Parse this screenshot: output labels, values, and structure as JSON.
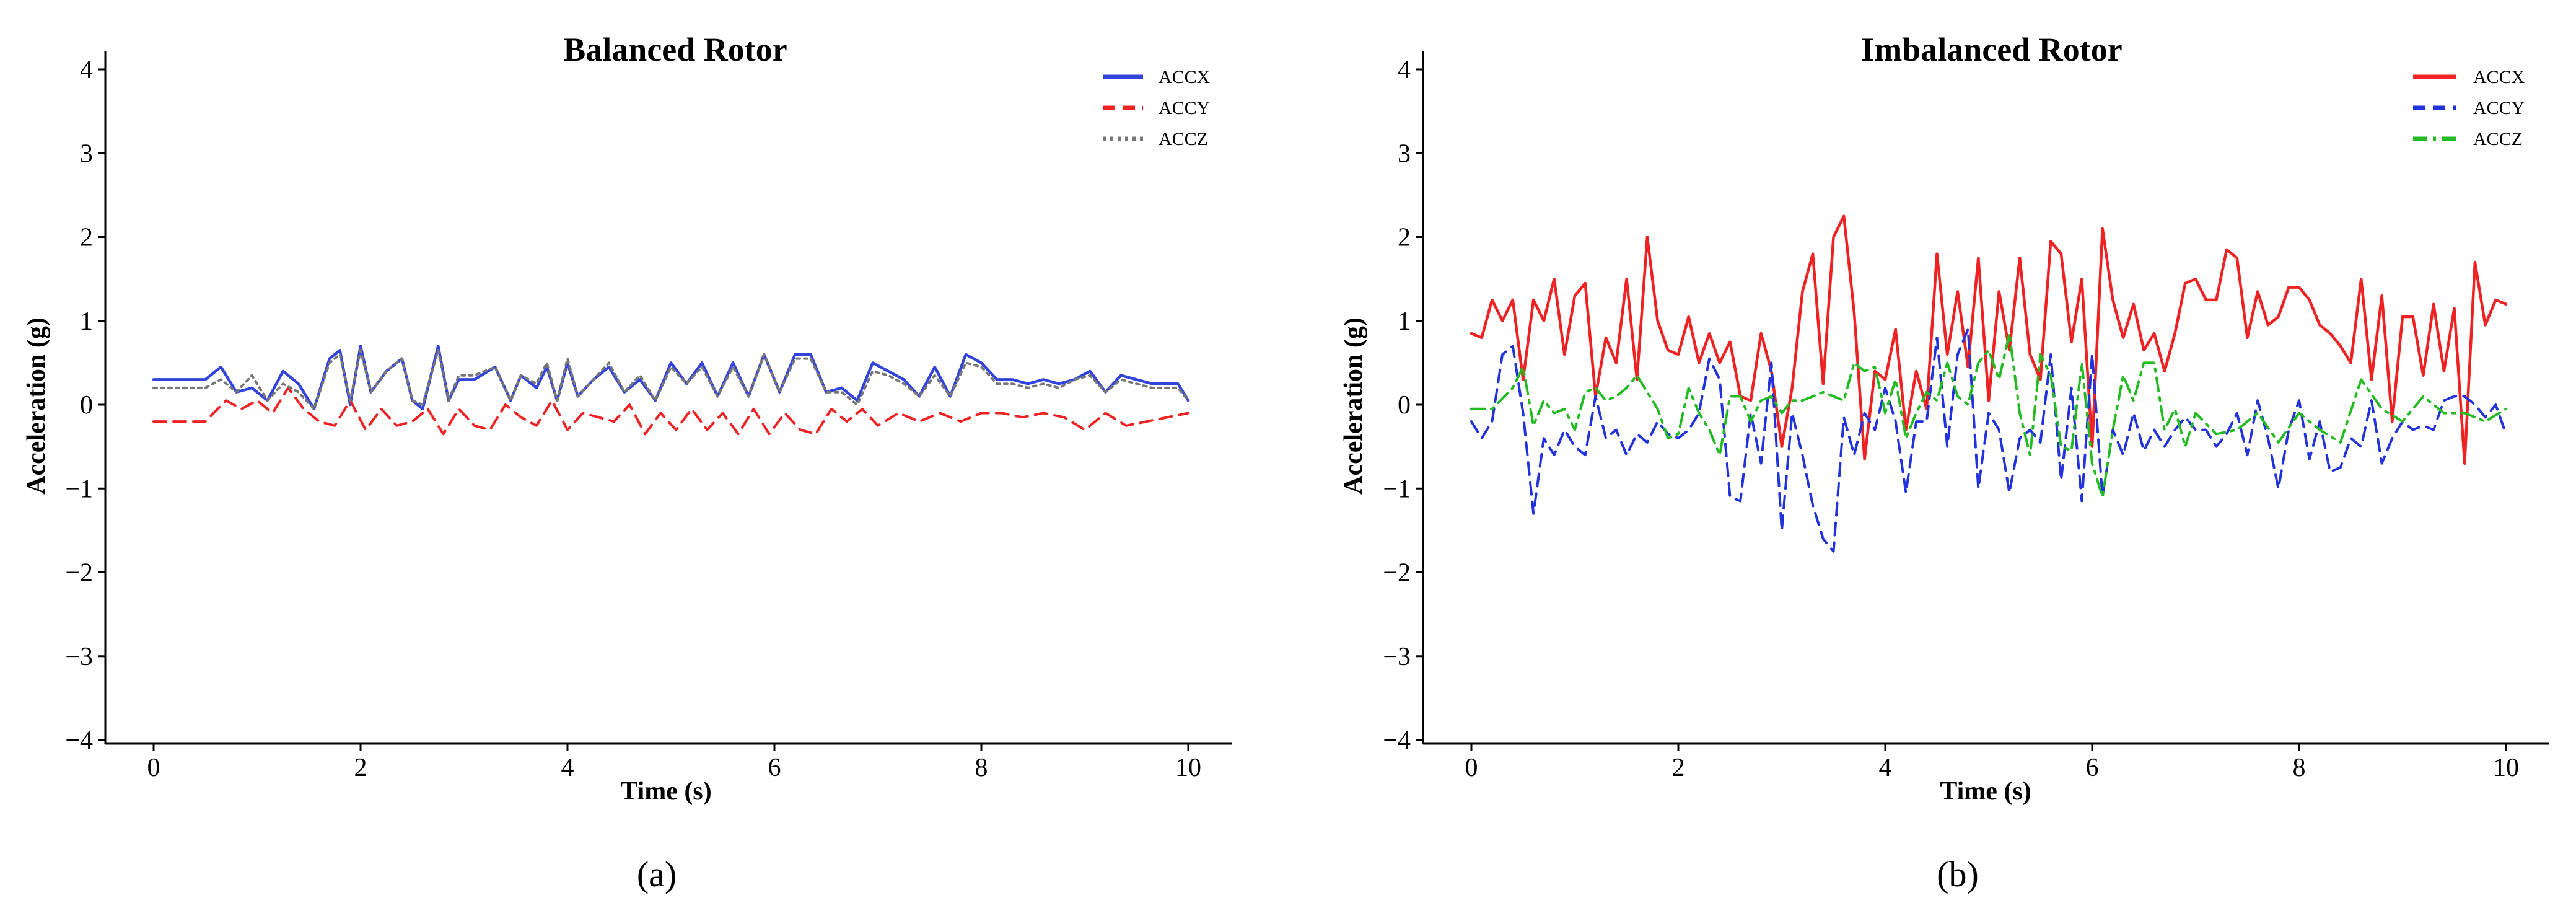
{
  "colors": {
    "blue": "#3344dd",
    "red": "#ee2222",
    "gray": "#777777",
    "green": "#22bb22",
    "axis": "#000000"
  },
  "chart_data": [
    {
      "type": "line",
      "caption": "(a)",
      "title": "Balanced Rotor",
      "xlabel": "Time (s)",
      "ylabel": "Acceleration (g)",
      "xlim": [
        0,
        10
      ],
      "ylim": [
        -4,
        4
      ],
      "xticks": [
        "0",
        "2",
        "4",
        "6",
        "8",
        "10"
      ],
      "yticks": [
        "4",
        "3",
        "2",
        "1",
        "0",
        "−1",
        "−2",
        "−3",
        "−4"
      ],
      "legend_position": "top-right",
      "grid": false,
      "series": [
        {
          "name": "ACCX",
          "color": "#3344dd",
          "style": "solid",
          "x": [
            0,
            0.5,
            0.65,
            0.8,
            0.95,
            1.1,
            1.25,
            1.4,
            1.55,
            1.7,
            1.8,
            1.9,
            2.0,
            2.1,
            2.25,
            2.4,
            2.5,
            2.6,
            2.75,
            2.85,
            2.95,
            3.1,
            3.3,
            3.45,
            3.55,
            3.7,
            3.8,
            3.9,
            4.0,
            4.1,
            4.25,
            4.4,
            4.55,
            4.7,
            4.85,
            5.0,
            5.15,
            5.3,
            5.45,
            5.6,
            5.75,
            5.9,
            6.05,
            6.2,
            6.35,
            6.5,
            6.65,
            6.8,
            6.95,
            7.1,
            7.25,
            7.4,
            7.55,
            7.7,
            7.85,
            8.0,
            8.15,
            8.3,
            8.45,
            8.6,
            8.75,
            8.9,
            9.05,
            9.2,
            9.35,
            9.5,
            9.65,
            9.8,
            9.9,
            10.0
          ],
          "y": [
            0.3,
            0.3,
            0.45,
            0.15,
            0.2,
            0.05,
            0.4,
            0.25,
            -0.05,
            0.55,
            0.65,
            0.0,
            0.7,
            0.15,
            0.4,
            0.55,
            0.05,
            -0.05,
            0.7,
            0.05,
            0.3,
            0.3,
            0.45,
            0.05,
            0.35,
            0.2,
            0.45,
            0.05,
            0.5,
            0.1,
            0.3,
            0.45,
            0.15,
            0.3,
            0.05,
            0.5,
            0.25,
            0.5,
            0.1,
            0.5,
            0.1,
            0.6,
            0.15,
            0.6,
            0.6,
            0.15,
            0.2,
            0.05,
            0.5,
            0.4,
            0.3,
            0.1,
            0.45,
            0.1,
            0.6,
            0.5,
            0.3,
            0.3,
            0.25,
            0.3,
            0.25,
            0.3,
            0.4,
            0.15,
            0.35,
            0.3,
            0.25,
            0.25,
            0.25,
            0.05
          ]
        },
        {
          "name": "ACCY",
          "color": "#ee2222",
          "style": "dashed",
          "x": [
            0,
            0.5,
            0.7,
            0.85,
            1.0,
            1.15,
            1.3,
            1.45,
            1.6,
            1.75,
            1.9,
            2.05,
            2.2,
            2.35,
            2.5,
            2.65,
            2.8,
            2.95,
            3.1,
            3.25,
            3.4,
            3.55,
            3.7,
            3.85,
            4.0,
            4.15,
            4.3,
            4.45,
            4.6,
            4.75,
            4.9,
            5.05,
            5.2,
            5.35,
            5.5,
            5.65,
            5.8,
            5.95,
            6.1,
            6.25,
            6.4,
            6.55,
            6.7,
            6.85,
            7.0,
            7.2,
            7.4,
            7.6,
            7.8,
            8.0,
            8.2,
            8.4,
            8.6,
            8.8,
            9.0,
            9.2,
            9.4,
            9.6,
            9.8,
            10.0
          ],
          "y": [
            -0.2,
            -0.2,
            0.05,
            -0.05,
            0.05,
            -0.1,
            0.2,
            -0.05,
            -0.2,
            -0.25,
            0.05,
            -0.3,
            -0.05,
            -0.25,
            -0.2,
            -0.05,
            -0.35,
            -0.05,
            -0.25,
            -0.3,
            0.0,
            -0.15,
            -0.25,
            0.05,
            -0.3,
            -0.1,
            -0.15,
            -0.2,
            0.0,
            -0.35,
            -0.1,
            -0.3,
            -0.05,
            -0.3,
            -0.1,
            -0.35,
            -0.05,
            -0.35,
            -0.1,
            -0.3,
            -0.35,
            -0.05,
            -0.2,
            -0.05,
            -0.25,
            -0.1,
            -0.2,
            -0.1,
            -0.2,
            -0.1,
            -0.1,
            -0.15,
            -0.1,
            -0.15,
            -0.3,
            -0.1,
            -0.25,
            -0.2,
            -0.15,
            -0.1
          ]
        },
        {
          "name": "ACCZ",
          "color": "#777777",
          "style": "dotted",
          "x": [
            0,
            0.5,
            0.65,
            0.8,
            0.95,
            1.1,
            1.25,
            1.4,
            1.55,
            1.7,
            1.8,
            1.9,
            2.0,
            2.1,
            2.25,
            2.4,
            2.5,
            2.6,
            2.75,
            2.85,
            2.95,
            3.1,
            3.3,
            3.45,
            3.55,
            3.7,
            3.8,
            3.9,
            4.0,
            4.1,
            4.25,
            4.4,
            4.55,
            4.7,
            4.85,
            5.0,
            5.15,
            5.3,
            5.45,
            5.6,
            5.75,
            5.9,
            6.05,
            6.2,
            6.35,
            6.5,
            6.65,
            6.8,
            6.95,
            7.1,
            7.25,
            7.4,
            7.55,
            7.7,
            7.85,
            8.0,
            8.15,
            8.3,
            8.45,
            8.6,
            8.75,
            8.9,
            9.05,
            9.2,
            9.35,
            9.5,
            9.65,
            9.8,
            9.9,
            10.0
          ],
          "y": [
            0.2,
            0.2,
            0.3,
            0.15,
            0.35,
            0.05,
            0.25,
            0.15,
            -0.05,
            0.5,
            0.6,
            0.05,
            0.65,
            0.15,
            0.4,
            0.55,
            0.05,
            0.0,
            0.65,
            0.05,
            0.35,
            0.35,
            0.45,
            0.05,
            0.35,
            0.25,
            0.5,
            0.05,
            0.55,
            0.1,
            0.3,
            0.5,
            0.15,
            0.35,
            0.05,
            0.45,
            0.25,
            0.45,
            0.1,
            0.45,
            0.1,
            0.6,
            0.15,
            0.55,
            0.55,
            0.15,
            0.15,
            0.0,
            0.4,
            0.35,
            0.25,
            0.1,
            0.35,
            0.1,
            0.5,
            0.45,
            0.25,
            0.25,
            0.2,
            0.25,
            0.2,
            0.3,
            0.35,
            0.15,
            0.3,
            0.25,
            0.2,
            0.2,
            0.2,
            0.05
          ]
        }
      ]
    },
    {
      "type": "line",
      "caption": "(b)",
      "title": "Imbalanced Rotor",
      "xlabel": "Time (s)",
      "ylabel": "Acceleration (g)",
      "xlim": [
        0,
        10
      ],
      "ylim": [
        -4,
        4
      ],
      "xticks": [
        "0",
        "2",
        "4",
        "6",
        "8",
        "10"
      ],
      "yticks": [
        "4",
        "3",
        "2",
        "1",
        "0",
        "−1",
        "−2",
        "−3",
        "−4"
      ],
      "legend_position": "top-right",
      "grid": false,
      "series": [
        {
          "name": "ACCX",
          "color": "#ee2222",
          "style": "solid",
          "x": [
            0,
            0.1,
            0.2,
            0.3,
            0.4,
            0.5,
            0.6,
            0.7,
            0.8,
            0.9,
            1.0,
            1.1,
            1.2,
            1.3,
            1.4,
            1.5,
            1.6,
            1.7,
            1.8,
            1.9,
            2.0,
            2.1,
            2.2,
            2.3,
            2.4,
            2.5,
            2.6,
            2.7,
            2.8,
            2.9,
            3.0,
            3.1,
            3.2,
            3.3,
            3.4,
            3.5,
            3.6,
            3.7,
            3.8,
            3.9,
            4.0,
            4.1,
            4.2,
            4.3,
            4.4,
            4.5,
            4.6,
            4.7,
            4.8,
            4.9,
            5.0,
            5.1,
            5.2,
            5.3,
            5.4,
            5.5,
            5.6,
            5.7,
            5.8,
            5.9,
            6.0,
            6.1,
            6.2,
            6.3,
            6.4,
            6.5,
            6.6,
            6.7,
            6.8,
            6.9,
            7.0,
            7.1,
            7.2,
            7.3,
            7.4,
            7.5,
            7.6,
            7.7,
            7.8,
            7.9,
            8.0,
            8.1,
            8.2,
            8.3,
            8.4,
            8.5,
            8.6,
            8.7,
            8.8,
            8.9,
            9.0,
            9.1,
            9.2,
            9.3,
            9.4,
            9.5,
            9.6,
            9.7,
            9.8,
            9.9,
            10.0
          ],
          "y": [
            0.85,
            0.8,
            1.25,
            1.0,
            1.25,
            0.3,
            1.25,
            1.0,
            1.5,
            0.6,
            1.3,
            1.45,
            0.1,
            0.8,
            0.5,
            1.5,
            0.3,
            2.0,
            1.0,
            0.65,
            0.6,
            1.05,
            0.5,
            0.85,
            0.5,
            0.75,
            0.1,
            0.05,
            0.85,
            0.4,
            -0.5,
            0.2,
            1.35,
            1.8,
            0.25,
            2.0,
            2.25,
            1.1,
            -0.65,
            0.4,
            0.3,
            0.9,
            -0.3,
            0.4,
            -0.05,
            1.8,
            0.6,
            1.35,
            0.45,
            1.75,
            0.05,
            1.35,
            0.65,
            1.75,
            0.6,
            0.3,
            1.95,
            1.8,
            0.75,
            1.5,
            -0.5,
            2.1,
            1.25,
            0.8,
            1.2,
            0.65,
            0.85,
            0.4,
            0.85,
            1.45,
            1.5,
            1.25,
            1.25,
            1.85,
            1.75,
            0.8,
            1.35,
            0.95,
            1.05,
            1.4,
            1.4,
            1.25,
            0.95,
            0.85,
            0.7,
            0.5,
            1.5,
            0.3,
            1.3,
            -0.2,
            1.05,
            1.05,
            0.35,
            1.2,
            0.4,
            1.15,
            -0.7,
            1.7,
            0.95,
            1.25,
            1.2
          ]
        },
        {
          "name": "ACCY",
          "color": "#2233dd",
          "style": "dashed",
          "x": [
            0,
            0.1,
            0.2,
            0.3,
            0.4,
            0.5,
            0.6,
            0.7,
            0.8,
            0.9,
            1.0,
            1.1,
            1.2,
            1.3,
            1.4,
            1.5,
            1.6,
            1.7,
            1.8,
            1.9,
            2.0,
            2.1,
            2.2,
            2.3,
            2.4,
            2.5,
            2.6,
            2.7,
            2.8,
            2.9,
            3.0,
            3.1,
            3.2,
            3.3,
            3.4,
            3.5,
            3.6,
            3.7,
            3.8,
            3.9,
            4.0,
            4.1,
            4.2,
            4.3,
            4.4,
            4.5,
            4.6,
            4.7,
            4.8,
            4.9,
            5.0,
            5.1,
            5.2,
            5.3,
            5.4,
            5.5,
            5.6,
            5.7,
            5.8,
            5.9,
            6.0,
            6.1,
            6.2,
            6.3,
            6.4,
            6.5,
            6.6,
            6.7,
            6.8,
            6.9,
            7.0,
            7.1,
            7.2,
            7.3,
            7.4,
            7.5,
            7.6,
            7.7,
            7.8,
            7.9,
            8.0,
            8.1,
            8.2,
            8.3,
            8.4,
            8.5,
            8.6,
            8.7,
            8.8,
            8.9,
            9.0,
            9.1,
            9.2,
            9.3,
            9.4,
            9.5,
            9.6,
            9.7,
            9.8,
            9.9,
            10.0
          ],
          "y": [
            -0.2,
            -0.4,
            -0.2,
            0.6,
            0.7,
            -0.1,
            -1.3,
            -0.4,
            -0.6,
            -0.3,
            -0.5,
            -0.6,
            0.1,
            -0.4,
            -0.3,
            -0.6,
            -0.35,
            -0.45,
            -0.2,
            -0.35,
            -0.4,
            -0.3,
            -0.1,
            0.55,
            0.3,
            -1.1,
            -1.15,
            -0.1,
            -0.7,
            0.5,
            -1.5,
            -0.1,
            -0.6,
            -1.2,
            -1.6,
            -1.75,
            -0.15,
            -0.6,
            -0.1,
            -0.3,
            0.2,
            -0.2,
            -1.05,
            -0.2,
            -0.2,
            0.8,
            -0.5,
            0.6,
            0.9,
            -1.0,
            -0.1,
            -0.3,
            -1.05,
            -0.4,
            -0.3,
            -0.45,
            0.6,
            -0.9,
            0.2,
            -1.15,
            0.6,
            -1.1,
            -0.3,
            -0.6,
            -0.1,
            -0.55,
            -0.3,
            -0.5,
            -0.3,
            -0.15,
            -0.3,
            -0.3,
            -0.5,
            -0.35,
            -0.1,
            -0.6,
            0.05,
            -0.4,
            -1.0,
            -0.3,
            0.05,
            -0.65,
            -0.2,
            -0.8,
            -0.75,
            -0.4,
            -0.5,
            0.05,
            -0.7,
            -0.4,
            -0.2,
            -0.3,
            -0.25,
            -0.3,
            0.05,
            0.1,
            0.1,
            0.0,
            -0.15,
            0.0,
            -0.35
          ]
        },
        {
          "name": "ACCZ",
          "color": "#22bb22",
          "style": "dashdot",
          "x": [
            0,
            0.2,
            0.4,
            0.5,
            0.6,
            0.7,
            0.8,
            0.9,
            1.0,
            1.1,
            1.2,
            1.3,
            1.4,
            1.5,
            1.6,
            1.7,
            1.8,
            1.9,
            2.0,
            2.1,
            2.2,
            2.3,
            2.4,
            2.5,
            2.6,
            2.7,
            2.8,
            2.9,
            3.0,
            3.1,
            3.2,
            3.3,
            3.4,
            3.5,
            3.6,
            3.7,
            3.8,
            3.9,
            4.0,
            4.1,
            4.2,
            4.3,
            4.4,
            4.5,
            4.6,
            4.7,
            4.8,
            4.9,
            5.0,
            5.1,
            5.2,
            5.3,
            5.4,
            5.5,
            5.6,
            5.7,
            5.8,
            5.9,
            6.0,
            6.1,
            6.2,
            6.3,
            6.4,
            6.5,
            6.6,
            6.7,
            6.8,
            6.9,
            7.0,
            7.2,
            7.4,
            7.6,
            7.8,
            8.0,
            8.2,
            8.4,
            8.6,
            8.8,
            9.0,
            9.2,
            9.4,
            9.6,
            9.8,
            10.0
          ],
          "y": [
            -0.05,
            -0.05,
            0.2,
            0.45,
            -0.25,
            0.05,
            -0.1,
            -0.05,
            -0.3,
            0.15,
            0.2,
            0.05,
            0.1,
            0.2,
            0.35,
            0.15,
            -0.05,
            -0.4,
            -0.35,
            0.2,
            -0.1,
            -0.3,
            -0.6,
            0.1,
            0.1,
            -0.2,
            0.05,
            0.1,
            -0.1,
            0.05,
            0.05,
            0.1,
            0.15,
            0.1,
            0.05,
            0.5,
            0.4,
            0.45,
            -0.1,
            0.3,
            -0.4,
            -0.1,
            0.15,
            0.05,
            0.5,
            0.1,
            0.0,
            0.5,
            0.65,
            0.3,
            0.85,
            -0.1,
            -0.6,
            0.6,
            0.35,
            -0.5,
            -0.55,
            0.5,
            -0.7,
            -1.1,
            -0.3,
            0.35,
            0.05,
            0.5,
            0.5,
            -0.3,
            -0.05,
            -0.5,
            -0.1,
            -0.35,
            -0.3,
            -0.1,
            -0.45,
            -0.1,
            -0.3,
            -0.45,
            0.3,
            -0.05,
            -0.2,
            0.1,
            -0.1,
            -0.1,
            -0.2,
            -0.05
          ]
        }
      ]
    }
  ]
}
